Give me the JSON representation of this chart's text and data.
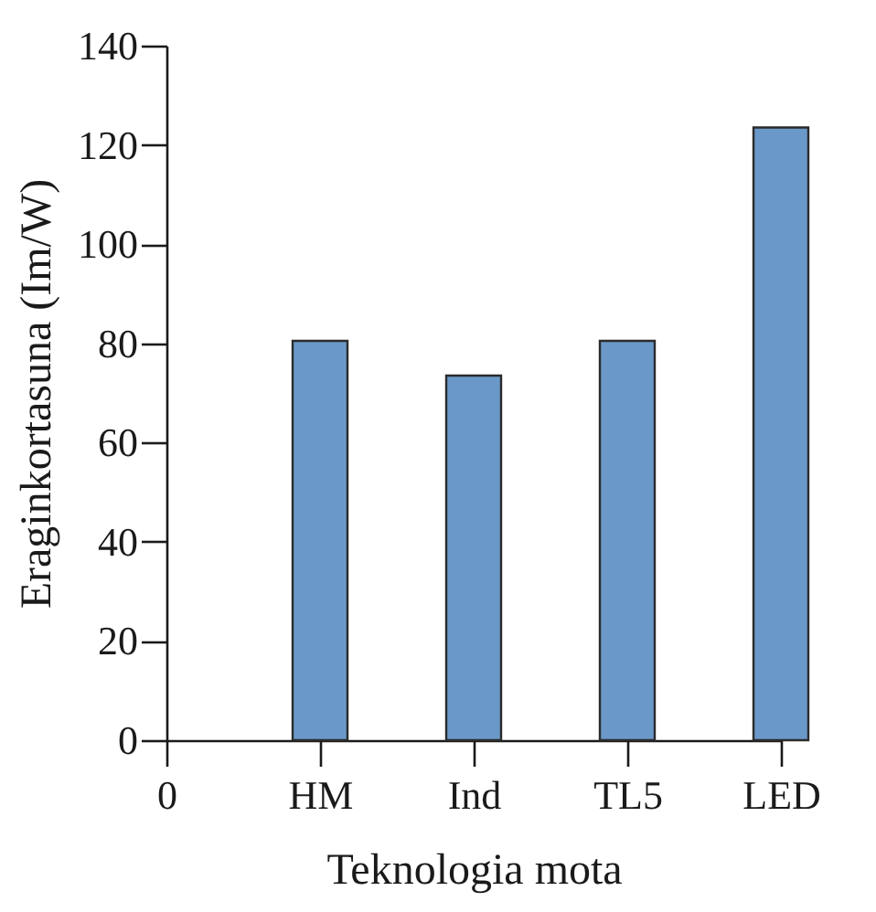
{
  "chart_data": {
    "type": "bar",
    "xlabel": "Teknologia mota",
    "ylabel": "Eraginkortasuna (Im/W)",
    "categories": [
      "0",
      "HM",
      "Ind",
      "TL5",
      "LED"
    ],
    "values": [
      null,
      80.5,
      73.5,
      80.5,
      123.5
    ],
    "color": "#6a98c8",
    "ylim": [
      0,
      140
    ],
    "yticks": [
      0,
      20,
      40,
      60,
      80,
      100,
      120,
      140
    ]
  }
}
